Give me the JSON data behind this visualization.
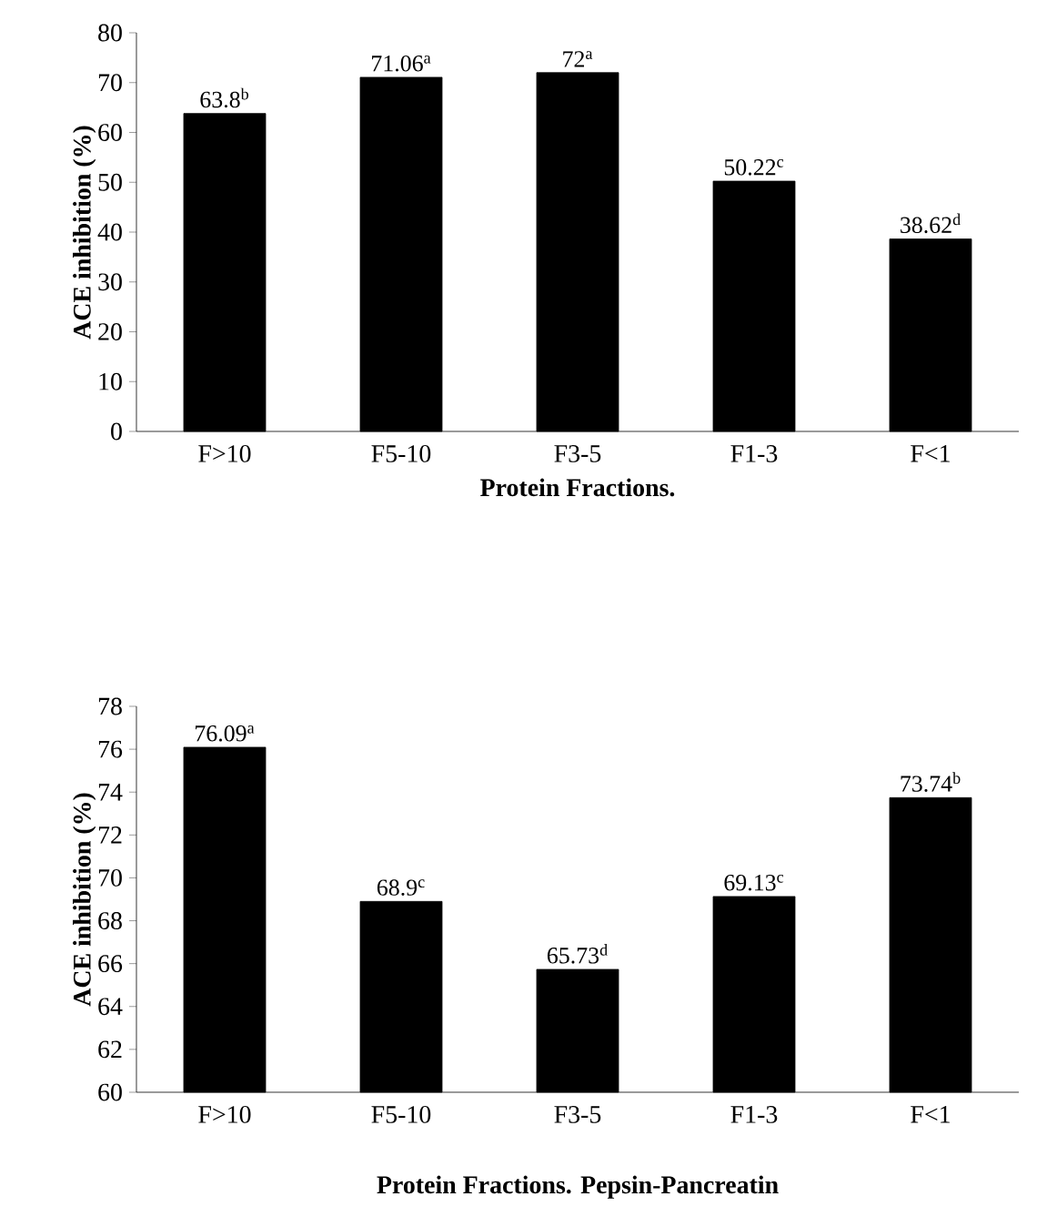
{
  "chart_data": [
    {
      "type": "bar",
      "xlabel": "Protein Fractions.",
      "ylabel": "ACE inhibition (%)",
      "categories": [
        "F>10",
        "F5-10",
        "F3-5",
        "F1-3",
        "F<1"
      ],
      "values": [
        63.8,
        71.06,
        72,
        50.22,
        38.62
      ],
      "value_labels": [
        "63.8$^{b}$",
        "71.06$^{a}$",
        "72$^{a}$",
        "50.22$^{c}$",
        "38.62$^{d}$"
      ],
      "color": "#000000",
      "ylim": [
        0,
        80
      ],
      "yticks": [
        0,
        10,
        20,
        30,
        40,
        50,
        60,
        70,
        80
      ]
    },
    {
      "type": "bar",
      "xlabel": "Protein Fractions. Pepsin-Pancreatin",
      "ylabel": "ACE inhibition (%)",
      "categories": [
        "F>10",
        "F5-10",
        "F3-5",
        "F1-3",
        "F<1"
      ],
      "values": [
        76.09,
        68.9,
        65.73,
        69.13,
        73.74
      ],
      "value_labels": [
        "76.09$^{a}$",
        "68.9$^{c}$",
        "65.73$^{d}$",
        "69.13$^{c}$",
        "73.74$^{b}$"
      ],
      "color": "#000000",
      "ylim": [
        60,
        78
      ],
      "yticks": [
        60,
        62,
        64,
        66,
        68,
        70,
        72,
        74,
        76,
        78
      ]
    }
  ]
}
